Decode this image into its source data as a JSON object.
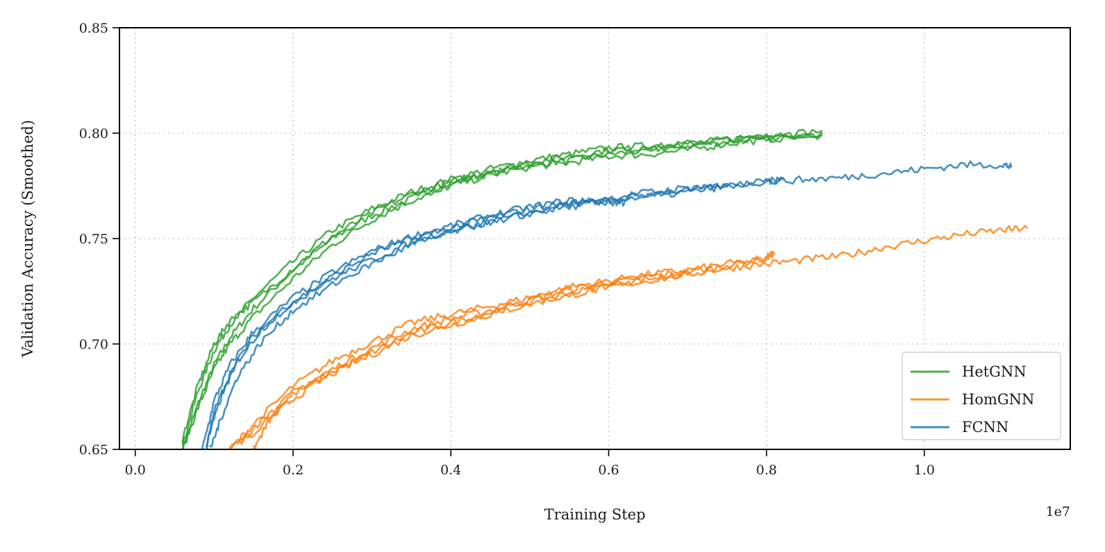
{
  "chart_data": {
    "type": "line",
    "title": "",
    "xlabel": "Training Step",
    "ylabel": "Validation Accuracy (Smoothed)",
    "x_offset_label": "1e7",
    "xlim": [
      -0.02,
      1.185
    ],
    "ylim": [
      0.65,
      0.85
    ],
    "x_ticks": [
      0.0,
      0.2,
      0.4,
      0.6,
      0.8,
      1.0
    ],
    "x_tick_labels": [
      "0.0",
      "0.2",
      "0.4",
      "0.6",
      "0.8",
      "1.0"
    ],
    "y_ticks": [
      0.65,
      0.7,
      0.75,
      0.8,
      0.85
    ],
    "y_tick_labels": [
      "0.65",
      "0.70",
      "0.75",
      "0.80",
      "0.85"
    ],
    "grid": true,
    "legend_position": "bottom-right",
    "legend": [
      {
        "name": "HetGNN",
        "color": "#2ca02c"
      },
      {
        "name": "HomGNN",
        "color": "#ff7f0e"
      },
      {
        "name": "FCNN",
        "color": "#1f77b4"
      }
    ],
    "series": [
      {
        "name": "HetGNN",
        "color": "#2ca02c",
        "x": [
          0.06,
          0.08,
          0.1,
          0.12,
          0.15,
          0.2,
          0.25,
          0.3,
          0.35,
          0.4,
          0.45,
          0.5,
          0.55,
          0.6,
          0.65,
          0.7,
          0.75,
          0.8,
          0.87
        ],
        "y": [
          0.65,
          0.672,
          0.69,
          0.703,
          0.717,
          0.735,
          0.75,
          0.761,
          0.769,
          0.776,
          0.781,
          0.785,
          0.787,
          0.79,
          0.792,
          0.794,
          0.796,
          0.798,
          0.8
        ]
      },
      {
        "name": "HetGNN",
        "color": "#2ca02c",
        "x": [
          0.06,
          0.08,
          0.1,
          0.12,
          0.15,
          0.2,
          0.25,
          0.3,
          0.35,
          0.4,
          0.45,
          0.5,
          0.55,
          0.6,
          0.65,
          0.7,
          0.75,
          0.8,
          0.87
        ],
        "y": [
          0.652,
          0.678,
          0.697,
          0.709,
          0.722,
          0.739,
          0.754,
          0.764,
          0.772,
          0.778,
          0.783,
          0.787,
          0.79,
          0.793,
          0.794,
          0.795,
          0.797,
          0.799,
          0.801
        ]
      },
      {
        "name": "HetGNN",
        "color": "#2ca02c",
        "x": [
          0.06,
          0.08,
          0.1,
          0.12,
          0.15,
          0.2,
          0.25,
          0.3,
          0.35,
          0.4,
          0.45,
          0.5,
          0.55,
          0.6,
          0.65,
          0.7,
          0.75,
          0.8,
          0.87
        ],
        "y": [
          0.65,
          0.67,
          0.688,
          0.7,
          0.713,
          0.731,
          0.747,
          0.759,
          0.768,
          0.775,
          0.78,
          0.784,
          0.786,
          0.789,
          0.79,
          0.792,
          0.795,
          0.797,
          0.799
        ]
      },
      {
        "name": "HetGNN",
        "color": "#2ca02c",
        "x": [
          0.06,
          0.08,
          0.1,
          0.12,
          0.15,
          0.2,
          0.25,
          0.3,
          0.35,
          0.4,
          0.45,
          0.5,
          0.55,
          0.6,
          0.65,
          0.7,
          0.75,
          0.8,
          0.87
        ],
        "y": [
          0.655,
          0.681,
          0.7,
          0.711,
          0.72,
          0.736,
          0.751,
          0.762,
          0.771,
          0.777,
          0.782,
          0.786,
          0.789,
          0.792,
          0.793,
          0.795,
          0.797,
          0.798,
          0.8
        ]
      },
      {
        "name": "HomGNN",
        "color": "#ff7f0e",
        "x": [
          0.12,
          0.15,
          0.2,
          0.25,
          0.3,
          0.35,
          0.4,
          0.45,
          0.5,
          0.55,
          0.6,
          0.65,
          0.7,
          0.75,
          0.8,
          0.81
        ],
        "y": [
          0.65,
          0.658,
          0.677,
          0.688,
          0.698,
          0.707,
          0.712,
          0.716,
          0.721,
          0.726,
          0.729,
          0.732,
          0.734,
          0.737,
          0.741,
          0.743
        ]
      },
      {
        "name": "HomGNN",
        "color": "#ff7f0e",
        "x": [
          0.12,
          0.15,
          0.2,
          0.25,
          0.3,
          0.35,
          0.4,
          0.45,
          0.5,
          0.55,
          0.6,
          0.65,
          0.7,
          0.75,
          0.8
        ],
        "y": [
          0.65,
          0.662,
          0.68,
          0.692,
          0.701,
          0.71,
          0.714,
          0.718,
          0.722,
          0.727,
          0.73,
          0.733,
          0.735,
          0.738,
          0.74
        ]
      },
      {
        "name": "HomGNN",
        "color": "#ff7f0e",
        "x": [
          0.13,
          0.16,
          0.2,
          0.25,
          0.3,
          0.35,
          0.4,
          0.45,
          0.5,
          0.55,
          0.6,
          0.65,
          0.7
        ],
        "y": [
          0.652,
          0.664,
          0.676,
          0.687,
          0.696,
          0.705,
          0.71,
          0.715,
          0.72,
          0.724,
          0.728,
          0.731,
          0.733
        ]
      },
      {
        "name": "HomGNN",
        "color": "#ff7f0e",
        "x": [
          0.15,
          0.17,
          0.2,
          0.25,
          0.3,
          0.35,
          0.4,
          0.45,
          0.5,
          0.55,
          0.6,
          0.65,
          0.7,
          0.75,
          0.8,
          0.85,
          0.9,
          0.95,
          1.0,
          1.05,
          1.1,
          1.13
        ],
        "y": [
          0.65,
          0.664,
          0.674,
          0.686,
          0.695,
          0.704,
          0.709,
          0.714,
          0.719,
          0.723,
          0.727,
          0.73,
          0.733,
          0.736,
          0.738,
          0.74,
          0.742,
          0.746,
          0.749,
          0.752,
          0.754,
          0.755
        ]
      },
      {
        "name": "FCNN",
        "color": "#1f77b4",
        "x": [
          0.085,
          0.1,
          0.12,
          0.15,
          0.2,
          0.25,
          0.3,
          0.35,
          0.4,
          0.45,
          0.5,
          0.55,
          0.6,
          0.62
        ],
        "y": [
          0.65,
          0.673,
          0.69,
          0.706,
          0.722,
          0.734,
          0.744,
          0.751,
          0.756,
          0.761,
          0.765,
          0.768,
          0.767,
          0.767
        ]
      },
      {
        "name": "FCNN",
        "color": "#1f77b4",
        "x": [
          0.09,
          0.1,
          0.12,
          0.15,
          0.2,
          0.25,
          0.3,
          0.35,
          0.4,
          0.45,
          0.5,
          0.55,
          0.6,
          0.65,
          0.7,
          0.75
        ],
        "y": [
          0.65,
          0.668,
          0.686,
          0.704,
          0.72,
          0.732,
          0.743,
          0.75,
          0.755,
          0.76,
          0.764,
          0.767,
          0.769,
          0.772,
          0.774,
          0.775
        ]
      },
      {
        "name": "FCNN",
        "color": "#1f77b4",
        "x": [
          0.09,
          0.11,
          0.13,
          0.16,
          0.2,
          0.25,
          0.3,
          0.35,
          0.4,
          0.45,
          0.5,
          0.55,
          0.6,
          0.65,
          0.7,
          0.75,
          0.8,
          0.85,
          0.9,
          0.95,
          1.0,
          1.05,
          1.1,
          1.11
        ],
        "y": [
          0.652,
          0.676,
          0.692,
          0.707,
          0.72,
          0.731,
          0.74,
          0.748,
          0.754,
          0.758,
          0.762,
          0.766,
          0.768,
          0.771,
          0.773,
          0.775,
          0.777,
          0.778,
          0.779,
          0.781,
          0.783,
          0.785,
          0.785,
          0.784
        ]
      },
      {
        "name": "FCNN",
        "color": "#1f77b4",
        "x": [
          0.095,
          0.11,
          0.13,
          0.16,
          0.2,
          0.25,
          0.3,
          0.35,
          0.4,
          0.45,
          0.5,
          0.55,
          0.6,
          0.65,
          0.7,
          0.75,
          0.8,
          0.82
        ],
        "y": [
          0.65,
          0.666,
          0.685,
          0.701,
          0.716,
          0.728,
          0.738,
          0.747,
          0.753,
          0.758,
          0.762,
          0.765,
          0.768,
          0.77,
          0.772,
          0.775,
          0.777,
          0.778
        ]
      }
    ]
  }
}
